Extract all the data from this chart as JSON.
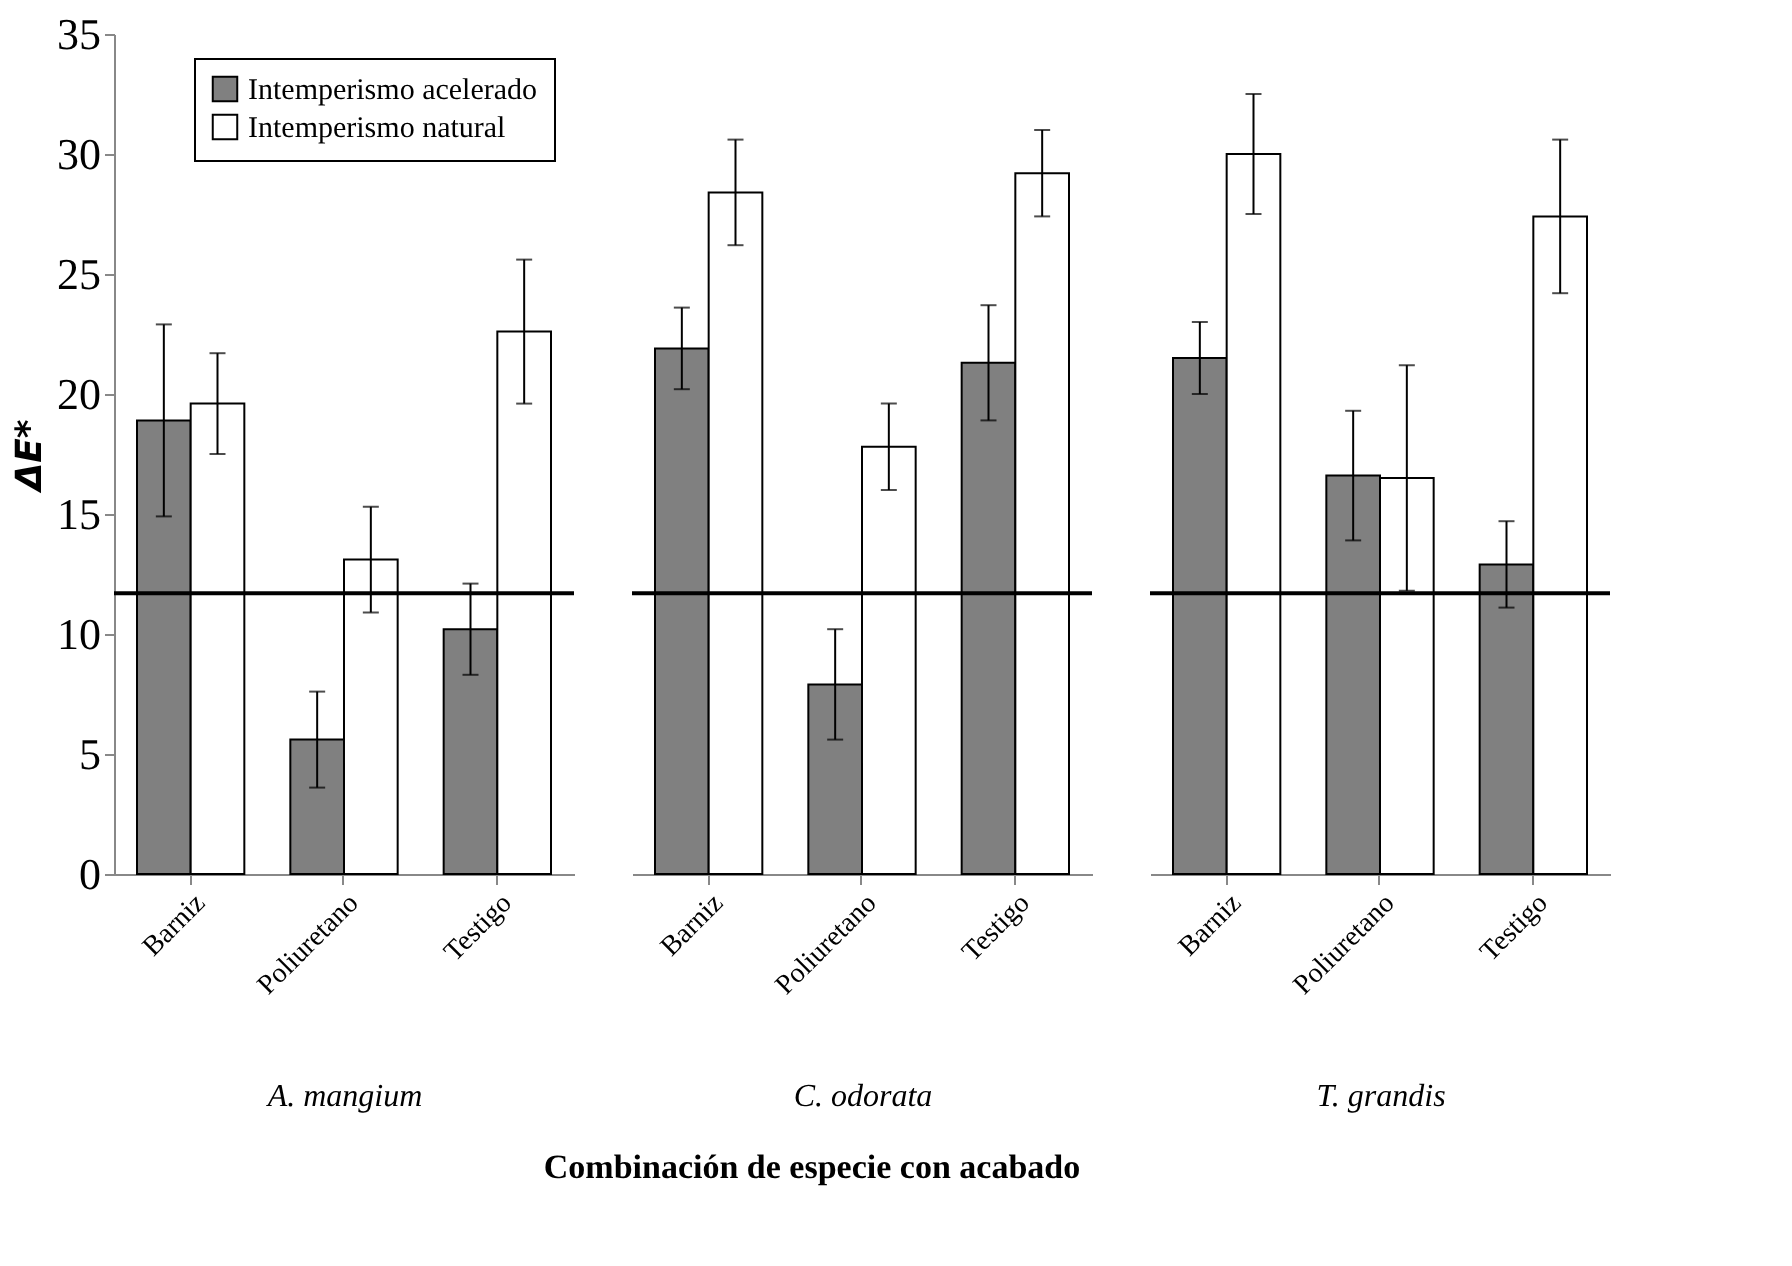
{
  "chart_data": [
    {
      "type": "bar",
      "ylabel": "ΔE*",
      "xlabel": "A. mangium",
      "categories": [
        "Barniz",
        "Poliuretano",
        "Testigo"
      ],
      "ylim": [
        0,
        35
      ],
      "yticks": [
        0,
        5,
        10,
        15,
        20,
        25,
        30,
        35
      ],
      "grid": false,
      "legend": "top left",
      "ref_lines": [
        {
          "axis": "y",
          "value": 11.7
        }
      ],
      "annotations": [
        "Combinación de especie con acabado"
      ],
      "series": [
        {
          "name": "Intemperismo acelerado",
          "color": "#808080",
          "values": [
            18.9,
            5.6,
            10.2
          ],
          "errors": [
            4.0,
            2.0,
            1.9
          ]
        },
        {
          "name": "Intemperismo natural",
          "color": "#ffffff",
          "values": [
            19.6,
            13.1,
            22.6
          ],
          "errors": [
            2.1,
            2.2,
            3.0
          ]
        }
      ]
    },
    {
      "type": "bar",
      "xlabel": "C. odorata",
      "categories": [
        "Barniz",
        "Poliuretano",
        "Testigo"
      ],
      "ylim": [
        0,
        35
      ],
      "yticks": [
        0,
        5,
        10,
        15,
        20,
        25,
        30,
        35
      ],
      "tick_labels": "x",
      "grid": false,
      "ref_lines": [
        {
          "axis": "y",
          "value": 11.7
        }
      ],
      "series": [
        {
          "name": "Intemperismo acelerado",
          "color": "#808080",
          "values": [
            21.9,
            7.9,
            21.3
          ],
          "errors": [
            1.7,
            2.3,
            2.4
          ]
        },
        {
          "name": "Intemperismo natural",
          "color": "#ffffff",
          "values": [
            28.4,
            17.8,
            29.2
          ],
          "errors": [
            2.2,
            1.8,
            1.8
          ]
        }
      ]
    },
    {
      "type": "bar",
      "xlabel": "T. grandis",
      "categories": [
        "Barniz",
        "Poliuretano",
        "Testigo"
      ],
      "ylim": [
        0,
        35
      ],
      "yticks": [
        0,
        5,
        10,
        15,
        20,
        25,
        30,
        35
      ],
      "tick_labels": "x",
      "grid": false,
      "ref_lines": [
        {
          "axis": "y",
          "value": 11.7
        }
      ],
      "series": [
        {
          "name": "Intemperismo acelerado",
          "color": "#808080",
          "values": [
            21.5,
            16.6,
            12.9
          ],
          "errors": [
            1.5,
            2.7,
            1.8
          ]
        },
        {
          "name": "Intemperismo natural",
          "color": "#ffffff",
          "values": [
            30.0,
            16.5,
            27.4
          ],
          "errors": [
            2.5,
            4.7,
            3.2
          ]
        }
      ]
    }
  ]
}
